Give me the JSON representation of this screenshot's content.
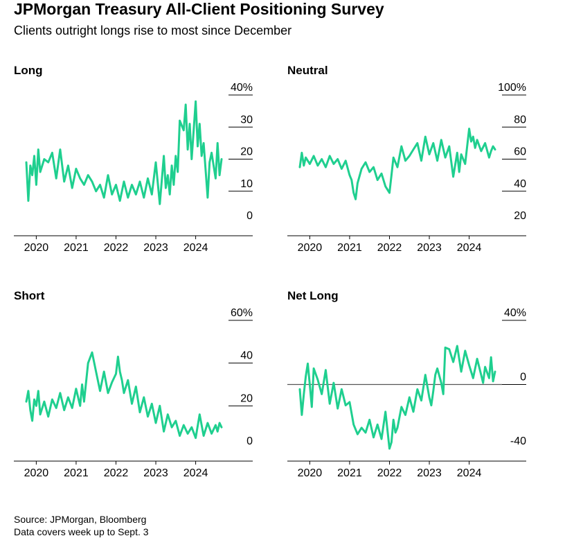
{
  "header": {
    "title": "JPMorgan Treasury All-Client Positioning Survey",
    "subtitle": "Clients outright longs rise to most since December"
  },
  "footer": {
    "source": "Source: JPMorgan, Bloomberg",
    "note": "Data covers week up to Sept. 3"
  },
  "colors": {
    "line": "#1fcf8f",
    "axis": "#000000",
    "zero": "#555555"
  },
  "chart_data": [
    {
      "type": "line",
      "title": "Long",
      "x_ticks": [
        "2020",
        "2021",
        "2022",
        "2023",
        "2024"
      ],
      "x_range": [
        2019.75,
        2024.65
      ],
      "ylim": [
        0,
        40
      ],
      "y_ticks": [
        {
          "v": 40,
          "label": "40%"
        },
        {
          "v": 30,
          "label": "30"
        },
        {
          "v": 20,
          "label": "20"
        },
        {
          "v": 10,
          "label": "10"
        },
        {
          "v": 0,
          "label": "0"
        }
      ],
      "zero_line": false,
      "series": [
        {
          "x": [
            2019.75,
            2019.8,
            2019.85,
            2019.9,
            2019.95,
            2020.0,
            2020.05,
            2020.1,
            2020.2,
            2020.3,
            2020.4,
            2020.5,
            2020.6,
            2020.7,
            2020.8,
            2020.9,
            2021.0,
            2021.1,
            2021.2,
            2021.3,
            2021.4,
            2021.5,
            2021.6,
            2021.7,
            2021.8,
            2021.9,
            2022.0,
            2022.1,
            2022.2,
            2022.3,
            2022.4,
            2022.5,
            2022.6,
            2022.7,
            2022.8,
            2022.9,
            2023.0,
            2023.1,
            2023.2,
            2023.25,
            2023.3,
            2023.35,
            2023.4,
            2023.45,
            2023.5,
            2023.55,
            2023.6,
            2023.7,
            2023.75,
            2023.8,
            2023.85,
            2023.9,
            2024.0,
            2024.05,
            2024.1,
            2024.15,
            2024.2,
            2024.3,
            2024.35,
            2024.4,
            2024.5,
            2024.55,
            2024.6,
            2024.65
          ],
          "y": [
            19,
            7,
            18,
            15,
            21,
            12,
            23,
            16,
            20,
            19,
            22,
            14,
            23,
            13,
            18,
            11,
            17,
            14,
            12,
            15,
            13,
            10,
            12,
            8,
            15,
            9,
            12,
            7,
            13,
            8,
            12,
            9,
            13,
            8,
            14,
            9,
            19,
            6,
            21,
            11,
            15,
            9,
            18,
            12,
            21,
            16,
            32,
            29,
            37,
            23,
            31,
            20,
            38,
            24,
            31,
            21,
            25,
            8,
            19,
            22,
            14,
            25,
            15,
            20
          ]
        }
      ]
    },
    {
      "type": "line",
      "title": "Neutral",
      "x_ticks": [
        "2020",
        "2021",
        "2022",
        "2023",
        "2024"
      ],
      "x_range": [
        2019.75,
        2024.65
      ],
      "ylim": [
        20,
        100
      ],
      "y_ticks": [
        {
          "v": 100,
          "label": "100%"
        },
        {
          "v": 80,
          "label": "80"
        },
        {
          "v": 60,
          "label": "60"
        },
        {
          "v": 40,
          "label": "40"
        },
        {
          "v": 20,
          "label": "20"
        }
      ],
      "zero_line": false,
      "series": [
        {
          "x": [
            2019.75,
            2019.8,
            2019.85,
            2019.9,
            2020.0,
            2020.1,
            2020.2,
            2020.3,
            2020.4,
            2020.5,
            2020.6,
            2020.7,
            2020.8,
            2020.9,
            2021.0,
            2021.05,
            2021.1,
            2021.15,
            2021.2,
            2021.3,
            2021.4,
            2021.5,
            2021.6,
            2021.7,
            2021.8,
            2021.9,
            2022.0,
            2022.05,
            2022.1,
            2022.2,
            2022.3,
            2022.4,
            2022.5,
            2022.6,
            2022.7,
            2022.8,
            2022.9,
            2023.0,
            2023.1,
            2023.2,
            2023.3,
            2023.4,
            2023.5,
            2023.6,
            2023.7,
            2023.75,
            2023.8,
            2023.9,
            2024.0,
            2024.05,
            2024.1,
            2024.15,
            2024.2,
            2024.3,
            2024.4,
            2024.5,
            2024.55,
            2024.6,
            2024.65
          ],
          "y": [
            55,
            64,
            56,
            61,
            57,
            62,
            56,
            60,
            55,
            62,
            57,
            60,
            54,
            59,
            50,
            47,
            39,
            35,
            45,
            54,
            58,
            52,
            55,
            47,
            51,
            43,
            39,
            50,
            61,
            55,
            68,
            59,
            62,
            66,
            70,
            59,
            74,
            63,
            70,
            59,
            72,
            61,
            68,
            49,
            64,
            52,
            63,
            57,
            79,
            71,
            74,
            67,
            72,
            65,
            70,
            61,
            65,
            68,
            66
          ]
        }
      ]
    },
    {
      "type": "line",
      "title": "Short",
      "x_ticks": [
        "2020",
        "2021",
        "2022",
        "2023",
        "2024"
      ],
      "x_range": [
        2019.75,
        2024.65
      ],
      "ylim": [
        0,
        60
      ],
      "y_ticks": [
        {
          "v": 60,
          "label": "60%"
        },
        {
          "v": 40,
          "label": "40"
        },
        {
          "v": 20,
          "label": "20"
        },
        {
          "v": 0,
          "label": "0"
        }
      ],
      "zero_line": false,
      "series": [
        {
          "x": [
            2019.75,
            2019.8,
            2019.85,
            2019.9,
            2019.95,
            2020.0,
            2020.05,
            2020.1,
            2020.2,
            2020.3,
            2020.4,
            2020.5,
            2020.6,
            2020.7,
            2020.8,
            2020.9,
            2021.0,
            2021.1,
            2021.15,
            2021.2,
            2021.3,
            2021.4,
            2021.5,
            2021.6,
            2021.7,
            2021.8,
            2021.9,
            2022.0,
            2022.05,
            2022.1,
            2022.15,
            2022.2,
            2022.3,
            2022.4,
            2022.5,
            2022.6,
            2022.7,
            2022.8,
            2022.9,
            2023.0,
            2023.1,
            2023.2,
            2023.3,
            2023.4,
            2023.5,
            2023.6,
            2023.7,
            2023.8,
            2023.9,
            2024.0,
            2024.1,
            2024.2,
            2024.3,
            2024.4,
            2024.5,
            2024.55,
            2024.6,
            2024.65
          ],
          "y": [
            22,
            27,
            18,
            13,
            23,
            20,
            27,
            16,
            22,
            15,
            23,
            19,
            26,
            18,
            24,
            19,
            28,
            20,
            30,
            22,
            40,
            45,
            36,
            27,
            36,
            26,
            31,
            35,
            43,
            36,
            32,
            26,
            32,
            21,
            29,
            17,
            24,
            15,
            21,
            12,
            20,
            8,
            16,
            10,
            13,
            6,
            11,
            7,
            10,
            5,
            16,
            6,
            12,
            7,
            11,
            8,
            12,
            10
          ]
        }
      ]
    },
    {
      "type": "line",
      "title": "Net Long",
      "x_ticks": [
        "2020",
        "2021",
        "2022",
        "2023",
        "2024"
      ],
      "x_range": [
        2019.75,
        2024.65
      ],
      "ylim": [
        -40,
        40
      ],
      "y_ticks": [
        {
          "v": 40,
          "label": "40%"
        },
        {
          "v": 0,
          "label": "0"
        },
        {
          "v": -40,
          "label": "-40"
        }
      ],
      "zero_line": true,
      "series": [
        {
          "x": [
            2019.75,
            2019.8,
            2019.85,
            2019.9,
            2019.95,
            2020.0,
            2020.05,
            2020.1,
            2020.2,
            2020.3,
            2020.4,
            2020.5,
            2020.6,
            2020.7,
            2020.8,
            2020.9,
            2021.0,
            2021.1,
            2021.2,
            2021.3,
            2021.4,
            2021.5,
            2021.6,
            2021.7,
            2021.8,
            2021.9,
            2022.0,
            2022.05,
            2022.1,
            2022.15,
            2022.2,
            2022.3,
            2022.4,
            2022.5,
            2022.6,
            2022.7,
            2022.8,
            2022.9,
            2023.0,
            2023.05,
            2023.1,
            2023.15,
            2023.2,
            2023.3,
            2023.35,
            2023.4,
            2023.5,
            2023.6,
            2023.7,
            2023.8,
            2023.9,
            2024.0,
            2024.1,
            2024.2,
            2024.3,
            2024.35,
            2024.4,
            2024.5,
            2024.55,
            2024.6,
            2024.65
          ],
          "y": [
            -3,
            -19,
            -6,
            5,
            13,
            0,
            -14,
            10,
            3,
            -6,
            9,
            -12,
            1,
            -15,
            -3,
            -13,
            -11,
            -25,
            -31,
            -27,
            -30,
            -22,
            -33,
            -25,
            -34,
            -17,
            -40,
            -36,
            -22,
            -30,
            -27,
            -14,
            -19,
            -8,
            -17,
            -3,
            -10,
            6,
            -8,
            -13,
            -4,
            6,
            10,
            1,
            -6,
            23,
            22,
            14,
            24,
            8,
            21,
            12,
            4,
            16,
            6,
            1,
            11,
            4,
            17,
            2,
            8
          ]
        }
      ]
    }
  ]
}
